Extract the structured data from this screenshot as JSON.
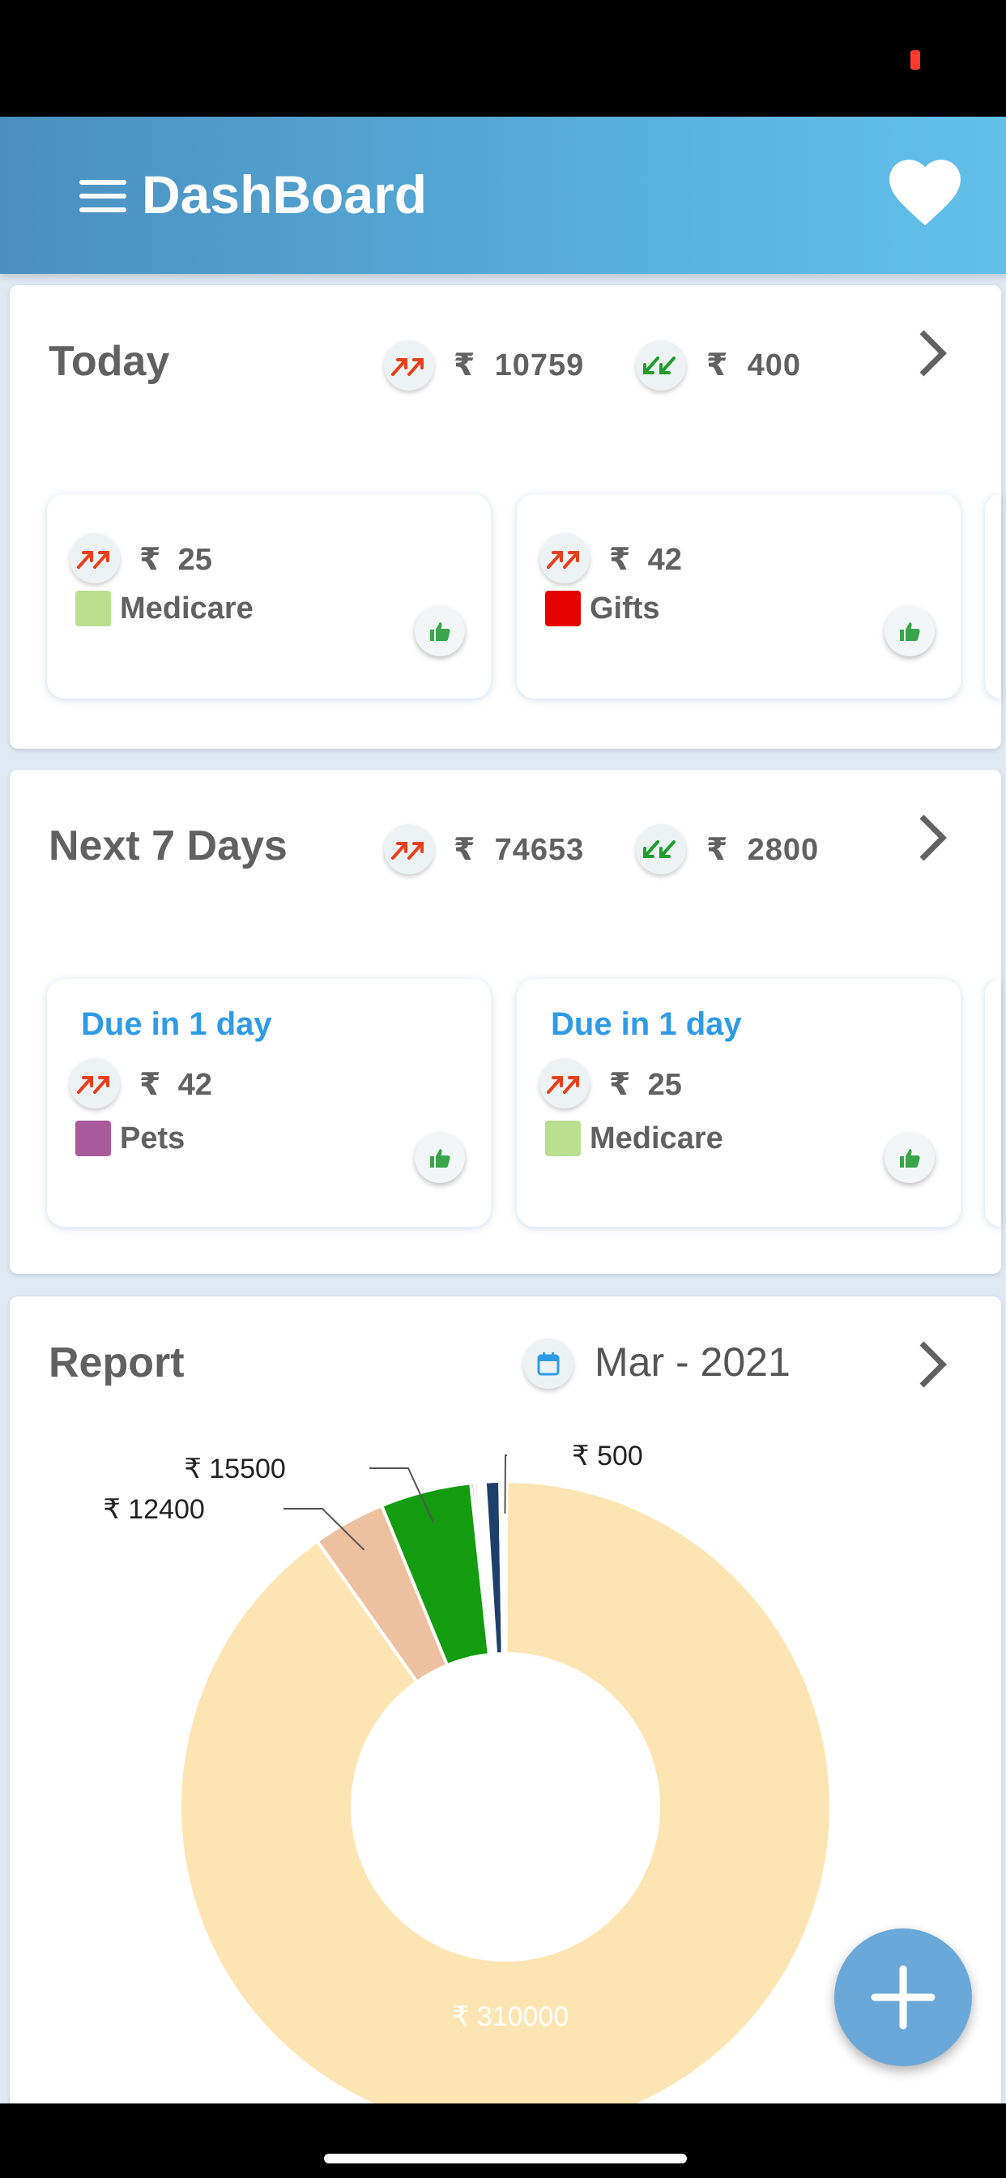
{
  "app": {
    "title": "DashBoard",
    "icons": {
      "menu": "menu-icon",
      "favorite": "heart-icon",
      "add": "plus-icon"
    }
  },
  "currency": "₹",
  "today": {
    "title": "Today",
    "expense": "10759",
    "income": "400",
    "items": [
      {
        "amount": "25",
        "category": "Medicare",
        "color": "#b9df8f"
      },
      {
        "amount": "42",
        "category": "Gifts",
        "color": "#e60000"
      }
    ]
  },
  "next7": {
    "title": "Next 7 Days",
    "expense": "74653",
    "income": "2800",
    "items": [
      {
        "due": "Due in 1 day",
        "amount": "42",
        "category": "Pets",
        "color": "#a85a9a"
      },
      {
        "due": "Due in 1 day",
        "amount": "25",
        "category": "Medicare",
        "color": "#b9df8f"
      }
    ]
  },
  "report": {
    "title": "Report",
    "date": "Mar - 2021"
  },
  "chart_data": {
    "type": "pie",
    "title": "",
    "slices": [
      {
        "label": "₹ 310000",
        "value": 310000,
        "color": "#fde5b3"
      },
      {
        "label": "₹ 12400",
        "value": 12400,
        "color": "#edc19f"
      },
      {
        "label": "₹ 15500",
        "value": 15500,
        "color": "#139c0f"
      },
      {
        "label": "",
        "value": 600,
        "color": "#e8445a"
      },
      {
        "label": "",
        "value": 600,
        "color": "#f0a0b0"
      },
      {
        "label": "",
        "value": 1200,
        "color": "#ffffff"
      },
      {
        "label": "",
        "value": 2500,
        "color": "#1d3f6b"
      },
      {
        "label": "",
        "value": 600,
        "color": "#ffffff"
      },
      {
        "label": "₹ 500",
        "value": 500,
        "color": "#8a3fbf"
      }
    ],
    "inner_radius_ratio": 0.47
  },
  "colors": {
    "expense_arrow": "#e8401c",
    "income_arrow": "#1e9e2e",
    "accent": "#2f9be6",
    "thumb": "#3aa54a"
  }
}
